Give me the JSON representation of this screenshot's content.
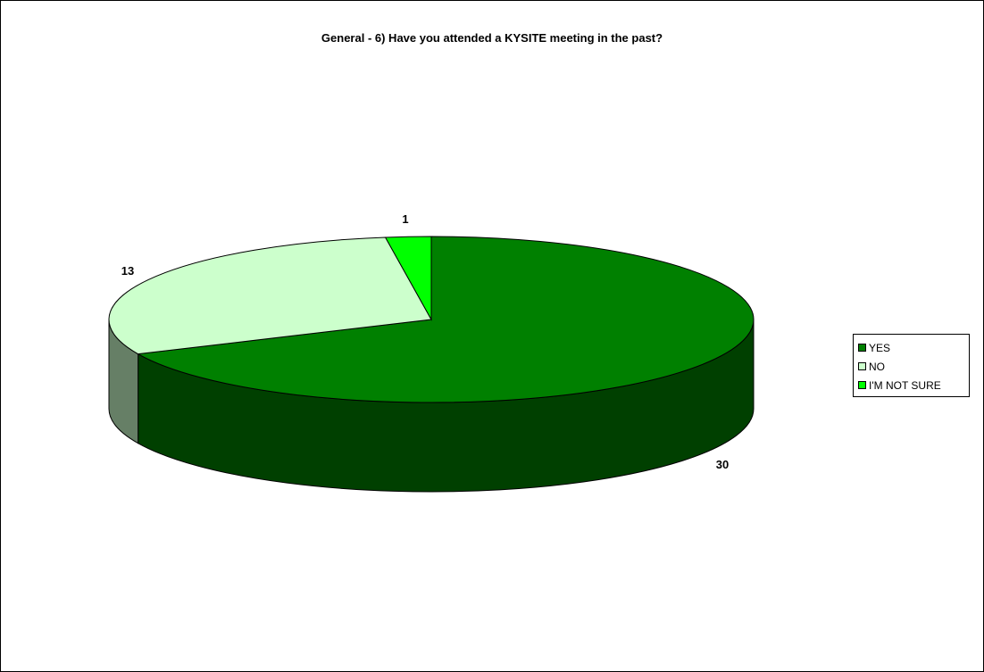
{
  "colors": {
    "yes": "#008000",
    "yes_side": "#004000",
    "no": "#ccffcc",
    "no_side": "#667f66",
    "not_sure": "#00ff00"
  },
  "chart_data": {
    "type": "pie",
    "title": "General - 6) Have you attended a KYSITE meeting in the past?",
    "categories": [
      "YES",
      "NO",
      "I'M NOT SURE"
    ],
    "values": [
      30,
      13,
      1
    ],
    "data_labels": [
      "30",
      "13",
      "1"
    ],
    "legend_position": "right",
    "style": "3d"
  }
}
